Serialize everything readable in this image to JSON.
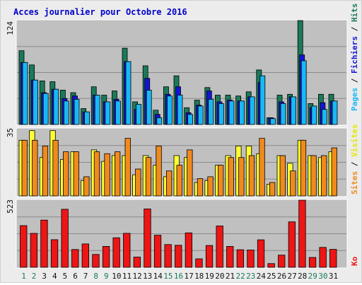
{
  "title": "Acces journalier pour Octobre 2016",
  "colors": {
    "hits": "#1a7a5a",
    "files": "#1515d8",
    "pages": "#19b8f5",
    "visits": "#f08a1c",
    "sites": "#ffff33",
    "kb": "#ee1515",
    "title": "#0000cc",
    "weekend_day": "#1a7a5a",
    "weekday": "#111111",
    "plot_bg": "#c0c0c0"
  },
  "chart_data": [
    {
      "type": "bar",
      "id": "hits-files-pages",
      "ymax_label": "124",
      "ylim": [
        0,
        124
      ],
      "legend": {
        "pages": "Pages",
        "sep1": "/",
        "files": "Fichiers",
        "sep2": "/",
        "hits": "Hits"
      },
      "categories": [
        "1",
        "2",
        "3",
        "4",
        "5",
        "6",
        "7",
        "8",
        "9",
        "10",
        "11",
        "12",
        "13",
        "14",
        "15",
        "16",
        "17",
        "18",
        "19",
        "20",
        "21",
        "22",
        "23",
        "24",
        "25",
        "26",
        "27",
        "28",
        "29",
        "30",
        "31"
      ],
      "series": [
        {
          "name": "Hits",
          "values": [
            88,
            71,
            52,
            51,
            41,
            38,
            19,
            45,
            35,
            40,
            91,
            27,
            70,
            17,
            45,
            58,
            20,
            29,
            44,
            35,
            35,
            34,
            39,
            65,
            8,
            35,
            36,
            124,
            25,
            36,
            36
          ]
        },
        {
          "name": "Fichiers",
          "values": [
            74,
            53,
            38,
            42,
            31,
            34,
            15,
            35,
            27,
            30,
            75,
            18,
            55,
            12,
            36,
            45,
            14,
            23,
            40,
            27,
            29,
            28,
            33,
            50,
            8,
            27,
            33,
            83,
            20,
            26,
            28
          ]
        },
        {
          "name": "Pages",
          "values": [
            74,
            53,
            37,
            42,
            28,
            30,
            15,
            35,
            27,
            28,
            75,
            24,
            41,
            8,
            34,
            35,
            12,
            22,
            30,
            25,
            28,
            28,
            33,
            58,
            7,
            25,
            33,
            76,
            22,
            18,
            28
          ]
        }
      ]
    },
    {
      "type": "bar",
      "id": "visits-sites",
      "ymax_label": "35",
      "ylim": [
        0,
        35
      ],
      "legend": {
        "sites": "Sites",
        "sep": "/",
        "visits": "Visites"
      },
      "categories": [
        "1",
        "2",
        "3",
        "4",
        "5",
        "6",
        "7",
        "8",
        "9",
        "10",
        "11",
        "12",
        "13",
        "14",
        "15",
        "16",
        "17",
        "18",
        "19",
        "20",
        "21",
        "22",
        "23",
        "24",
        "25",
        "26",
        "27",
        "28",
        "29",
        "30",
        "31"
      ],
      "series": [
        {
          "name": "Visites",
          "values": [
            29,
            29,
            26,
            29,
            23,
            23,
            10,
            23,
            22,
            23,
            30,
            14,
            20,
            26,
            13,
            16,
            24,
            9,
            10,
            16,
            20,
            20,
            21,
            30,
            7,
            21,
            13,
            29,
            21,
            21,
            25
          ]
        },
        {
          "name": "Sites",
          "values": [
            29,
            34,
            20,
            34,
            19,
            23,
            8,
            24,
            18,
            21,
            21,
            11,
            21,
            16,
            10,
            21,
            20,
            7,
            8,
            16,
            21,
            26,
            26,
            22,
            6,
            21,
            17,
            29,
            21,
            20,
            23
          ]
        }
      ]
    },
    {
      "type": "bar",
      "id": "kb",
      "ymax_label": "523",
      "ylim": [
        0,
        523
      ],
      "legend": {
        "kb": "Ko"
      },
      "categories": [
        "1",
        "2",
        "3",
        "4",
        "5",
        "6",
        "7",
        "8",
        "9",
        "10",
        "11",
        "12",
        "13",
        "14",
        "15",
        "16",
        "17",
        "18",
        "19",
        "20",
        "21",
        "22",
        "23",
        "24",
        "25",
        "26",
        "27",
        "28",
        "29",
        "30",
        "31"
      ],
      "series": [
        {
          "name": "Ko",
          "values": [
            325,
            264,
            368,
            215,
            452,
            139,
            182,
            100,
            163,
            230,
            265,
            80,
            455,
            250,
            177,
            172,
            268,
            66,
            170,
            322,
            163,
            137,
            135,
            214,
            29,
            95,
            354,
            523,
            77,
            155,
            140
          ]
        }
      ]
    }
  ],
  "weekend_days": [
    "1",
    "2",
    "8",
    "9",
    "15",
    "16",
    "22",
    "23",
    "29",
    "30"
  ]
}
